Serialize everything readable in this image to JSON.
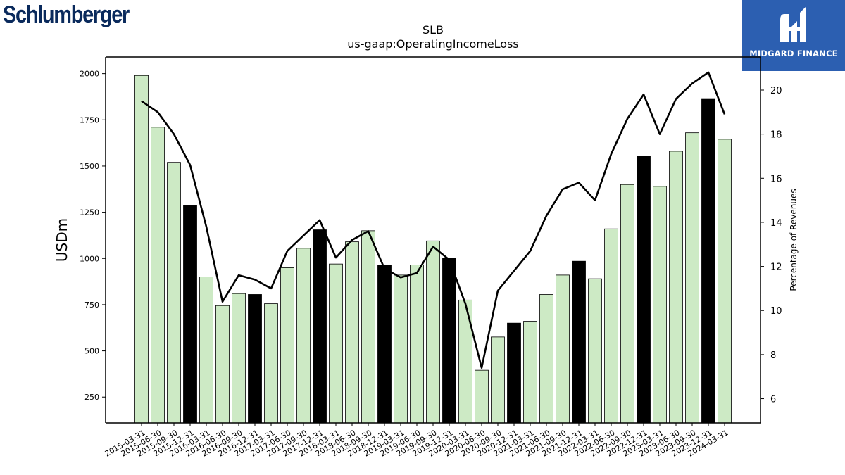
{
  "logos": {
    "left_text": "Schlumberger",
    "right_text": "MIDGARD FINANCE",
    "right_icon": "midgard-logo-icon",
    "right_bg": "#2c5fb1"
  },
  "chart_data": {
    "type": "bar",
    "title": "SLB",
    "subtitle": "us-gaap:OperatingIncomeLoss",
    "ylabel": "USDm",
    "y2label": "Percentage of Revenues",
    "ylim": [
      110,
      2090
    ],
    "y2lim": [
      4.9,
      21.5
    ],
    "yticks": [
      250,
      500,
      750,
      1000,
      1250,
      1500,
      1750,
      2000
    ],
    "y2ticks": [
      6,
      8,
      10,
      12,
      14,
      16,
      18,
      20
    ],
    "categories": [
      "2015-03-31",
      "2015-06-30",
      "2015-09-30",
      "2015-12-31",
      "2016-03-31",
      "2016-06-30",
      "2016-09-30",
      "2016-12-31",
      "2017-03-31",
      "2017-06-30",
      "2017-09-30",
      "2017-12-31",
      "2018-03-31",
      "2018-06-30",
      "2018-09-30",
      "2018-12-31",
      "2019-03-31",
      "2019-06-30",
      "2019-09-30",
      "2019-12-31",
      "2020-03-31",
      "2020-06-30",
      "2020-09-30",
      "2020-12-31",
      "2021-03-31",
      "2021-06-30",
      "2021-09-30",
      "2021-12-31",
      "2022-03-31",
      "2022-06-30",
      "2022-09-30",
      "2022-12-31",
      "2023-03-31",
      "2023-06-30",
      "2023-09-30",
      "2023-12-31",
      "2024-03-31"
    ],
    "series": [
      {
        "type": "bar",
        "values": [
          1990,
          1710,
          1520,
          1285,
          900,
          745,
          810,
          805,
          755,
          950,
          1055,
          1155,
          970,
          1090,
          1150,
          965,
          910,
          965,
          1095,
          1000,
          775,
          395,
          575,
          650,
          660,
          805,
          910,
          985,
          890,
          1160,
          1400,
          1555,
          1390,
          1580,
          1680,
          1865,
          1645
        ]
      },
      {
        "type": "line",
        "axis": "secondary",
        "values": [
          19.5,
          19.0,
          18.0,
          16.6,
          13.8,
          10.4,
          11.6,
          11.4,
          11.0,
          12.7,
          13.4,
          14.1,
          12.4,
          13.2,
          13.6,
          11.9,
          11.5,
          11.7,
          12.9,
          12.3,
          10.3,
          7.4,
          10.9,
          11.8,
          12.7,
          14.3,
          15.5,
          15.8,
          15.0,
          17.1,
          18.7,
          19.8,
          18.0,
          19.6,
          20.3,
          20.8,
          18.9
        ]
      }
    ],
    "highlight_color": "#000000",
    "bar_color": "#cdeac5",
    "line_color": "#000000",
    "grid": false
  }
}
